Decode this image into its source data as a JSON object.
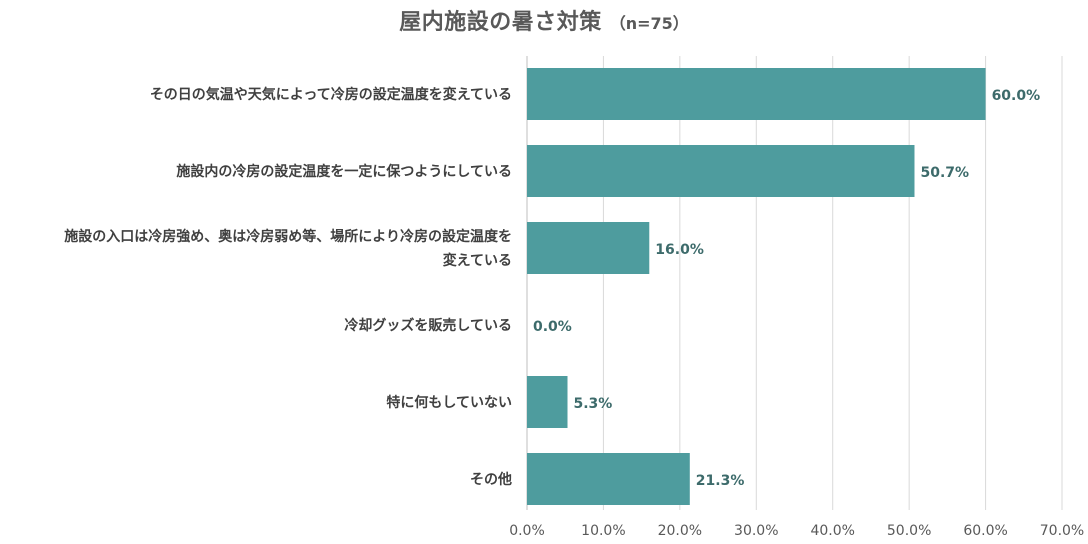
{
  "chart_data": {
    "type": "bar",
    "orientation": "horizontal",
    "title": "屋内施設の暑さ対策",
    "subtitle": "（n=75）",
    "categories": [
      [
        "その日の気温や天気によって冷房の設定温度を変えている"
      ],
      [
        "施設内の冷房の設定温度を一定に保つようにしている"
      ],
      [
        "施設の入口は冷房強め、奥は冷房弱め等、場所により冷房の設定温度を",
        "変えている"
      ],
      [
        "冷却グッズを販売している"
      ],
      [
        "特に何もしていない"
      ],
      [
        "その他"
      ]
    ],
    "values": [
      60.0,
      50.7,
      16.0,
      0.0,
      5.3,
      21.3
    ],
    "value_labels": [
      "60.0%",
      "50.7%",
      "16.0%",
      "0.0%",
      "5.3%",
      "21.3%"
    ],
    "xlim": [
      0,
      70
    ],
    "x_ticks": [
      0,
      10,
      20,
      30,
      40,
      50,
      60,
      70
    ],
    "x_tick_labels": [
      "0.0%",
      "10.0%",
      "20.0%",
      "30.0%",
      "40.0%",
      "50.0%",
      "60.0%",
      "70.0%"
    ],
    "grid": true,
    "bar_color": "#4e9c9e",
    "value_label_color": "#3d6b6b"
  }
}
